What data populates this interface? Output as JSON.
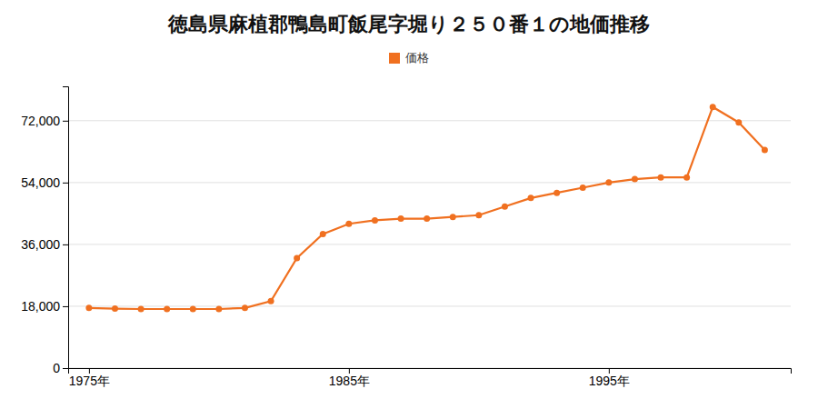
{
  "chart_data": {
    "type": "line",
    "title": "徳島県麻植郡鴨島町飯尾字堀り２５０番１の地価推移",
    "x": [
      1975,
      1976,
      1977,
      1978,
      1979,
      1980,
      1981,
      1982,
      1983,
      1984,
      1985,
      1986,
      1987,
      1988,
      1989,
      1990,
      1991,
      1992,
      1993,
      1994,
      1995,
      1996,
      1997,
      1998,
      1999,
      2000,
      2001
    ],
    "series": [
      {
        "name": "価格",
        "color": "#f07020",
        "values": [
          17500,
          17300,
          17200,
          17200,
          17200,
          17200,
          17500,
          19500,
          32000,
          39000,
          42000,
          43000,
          43500,
          43500,
          44000,
          44500,
          47000,
          49500,
          51000,
          52500,
          54000,
          55000,
          55500,
          55500,
          76000,
          71500,
          63500
        ]
      }
    ],
    "xlim": [
      1974.2,
      2002.0
    ],
    "xticks": [
      {
        "value": 1975,
        "label": "1975年"
      },
      {
        "value": 1985,
        "label": "1985年"
      },
      {
        "value": 1995,
        "label": "1995年"
      }
    ],
    "ylim": [
      0,
      82000
    ],
    "yticks": [
      0,
      {
        "value": 18000,
        "label": "18,000"
      },
      {
        "value": 36000,
        "label": "36,000"
      },
      {
        "value": 54000,
        "label": "54,000"
      },
      {
        "value": 72000,
        "label": "72,000"
      }
    ],
    "grid": true,
    "legend": "top",
    "marker": "circle"
  }
}
